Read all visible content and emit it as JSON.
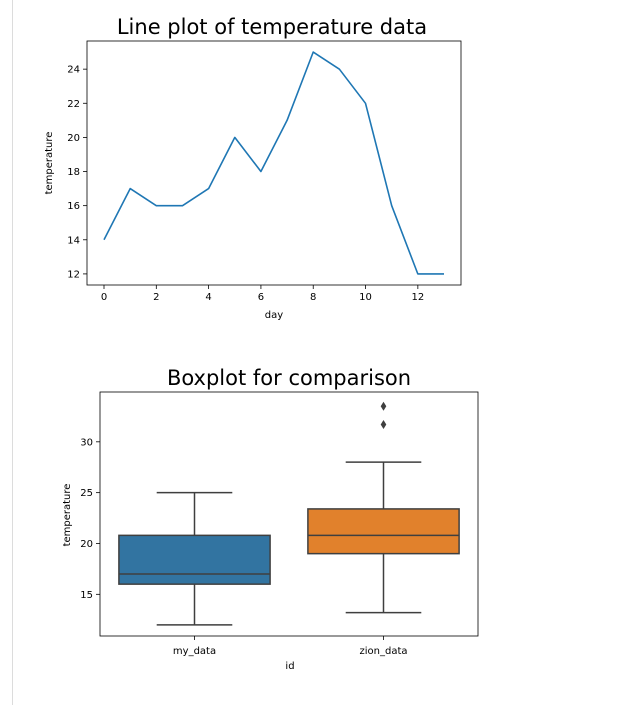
{
  "chart_data": [
    {
      "type": "line",
      "title": "Line plot of temperature data",
      "xlabel": "day",
      "ylabel": "temperature",
      "x": [
        0,
        1,
        2,
        3,
        4,
        5,
        6,
        7,
        8,
        9,
        10,
        11,
        12,
        13
      ],
      "y": [
        14,
        17,
        16,
        16,
        17,
        20,
        18,
        21,
        25,
        24,
        22,
        16,
        12,
        12
      ],
      "xlim": [
        -0.65,
        13.65
      ],
      "ylim": [
        11.35,
        25.65
      ],
      "xticks": [
        0,
        2,
        4,
        6,
        8,
        10,
        12
      ],
      "yticks": [
        12,
        14,
        16,
        18,
        20,
        22,
        24
      ],
      "grid": false,
      "color": "#1f77b4"
    },
    {
      "type": "box",
      "title": "Boxplot for comparison",
      "xlabel": "id",
      "ylabel": "temperature",
      "categories": [
        "my_data",
        "zion_data"
      ],
      "boxes": [
        {
          "whisker_low": 12,
          "q1": 16,
          "median": 17,
          "q3": 20.8,
          "whisker_high": 25,
          "outliers": [],
          "color": "#3274a1"
        },
        {
          "whisker_low": 13.2,
          "q1": 19,
          "median": 20.8,
          "q3": 23.4,
          "whisker_high": 28,
          "outliers": [
            31.7,
            33.5
          ],
          "color": "#e1812c"
        }
      ],
      "ylim": [
        10.9,
        34.9
      ],
      "yticks": [
        15,
        20,
        25,
        30
      ],
      "grid": false
    }
  ]
}
